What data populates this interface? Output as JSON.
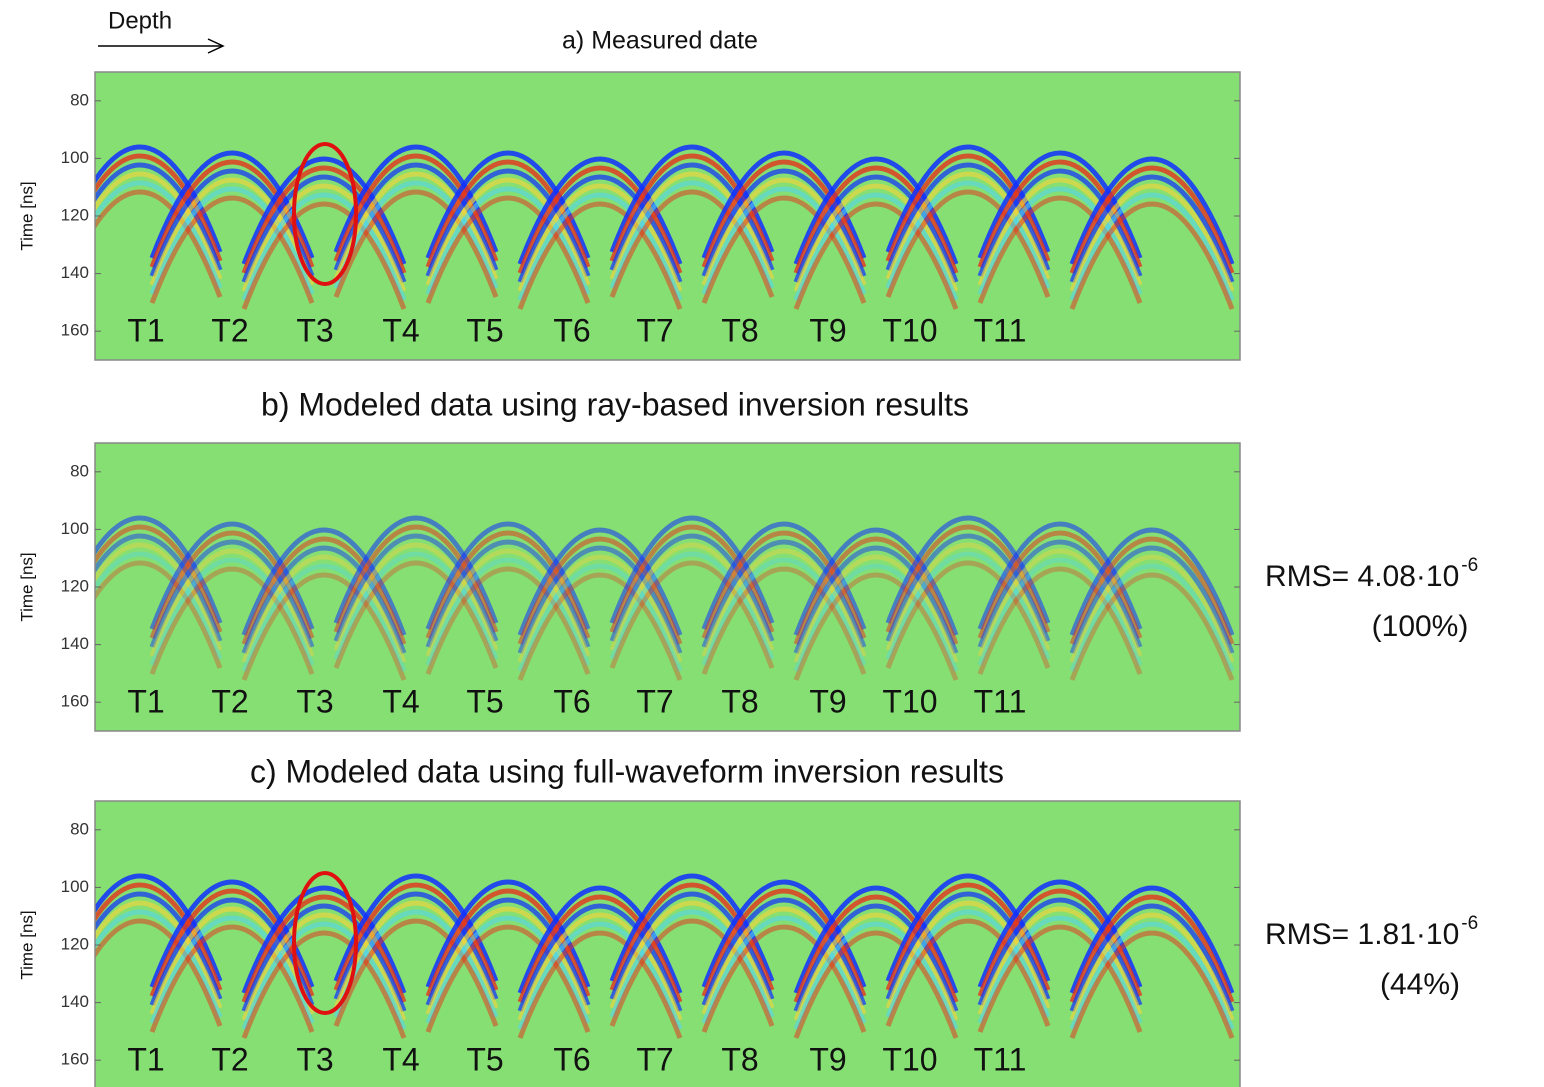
{
  "depth_label": "Depth",
  "chart_data": [
    {
      "type": "seismic-section",
      "title": "a) Measured date",
      "ylabel": "Time [ns]",
      "ylim": [
        170,
        70
      ],
      "yticks": [
        80,
        100,
        120,
        140,
        160
      ],
      "categories": [
        "T1",
        "T2",
        "T3",
        "T4",
        "T5",
        "T6",
        "T7",
        "T8",
        "T9",
        "T10",
        "T11"
      ]
    },
    {
      "type": "seismic-section",
      "title": "b) Modeled data using ray-based inversion results",
      "ylabel": "Time [ns]",
      "ylim": [
        170,
        70
      ],
      "yticks": [
        80,
        100,
        120,
        140,
        160
      ],
      "categories": [
        "T1",
        "T2",
        "T3",
        "T4",
        "T5",
        "T6",
        "T7",
        "T8",
        "T9",
        "T10",
        "T11"
      ],
      "annotation": {
        "text": "RMS= 4.08·10",
        "exponent": "-6",
        "note": "(100%)"
      }
    },
    {
      "type": "seismic-section",
      "title": "c) Modeled data using full-waveform inversion results",
      "ylabel": "Time [ns]",
      "ylim": [
        170,
        70
      ],
      "yticks": [
        80,
        100,
        120,
        140,
        160
      ],
      "categories": [
        "T1",
        "T2",
        "T3",
        "T4",
        "T5",
        "T6",
        "T7",
        "T8",
        "T9",
        "T10",
        "T11"
      ],
      "annotation": {
        "text": "RMS= 1.81·10",
        "exponent": "-6",
        "note": "(44%)"
      }
    }
  ]
}
